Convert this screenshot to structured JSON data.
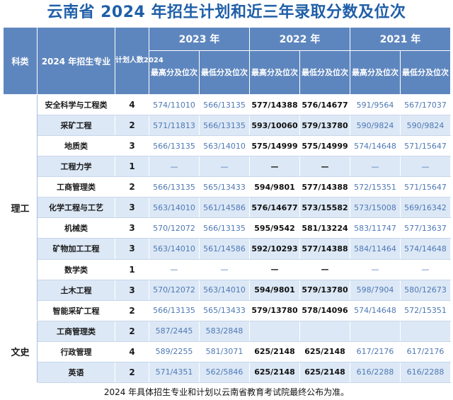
{
  "title": "云南省 2024 年招生计划和近三年录取分数及位次",
  "footnote": "2024 年具体招生专业和计划以云南省教育考试院最终公布为准。",
  "header": {
    "category": "科类",
    "major": "2024 年招生专业",
    "plan": "计划人数2024",
    "years": [
      "2023 年",
      "2022 年",
      "2021 年"
    ],
    "highest": "最高分及位次",
    "lowest": "最低分及位次"
  },
  "colors": {
    "header_bg": "#5e86be",
    "stripe": "#dce8f6",
    "title": "#1f5fa8",
    "value_blue": "#4f79b5"
  },
  "groups": [
    {
      "category": "理工",
      "rows": [
        {
          "major": "安全科学与工程类",
          "plan": "4",
          "y2023_high": "574/11010",
          "y2023_low": "566/13135",
          "y2022_high": "577/14388",
          "y2022_low": "576/14677",
          "y2021_high": "591/9564",
          "y2021_low": "567/17037"
        },
        {
          "major": "采矿工程",
          "plan": "2",
          "y2023_high": "571/11813",
          "y2023_low": "566/13135",
          "y2022_high": "593/10060",
          "y2022_low": "579/13780",
          "y2021_high": "590/9824",
          "y2021_low": "590/9824"
        },
        {
          "major": "地质类",
          "plan": "3",
          "y2023_high": "566/13135",
          "y2023_low": "563/14010",
          "y2022_high": "575/14999",
          "y2022_low": "575/14999",
          "y2021_high": "574/14648",
          "y2021_low": "571/15647"
        },
        {
          "major": "工程力学",
          "plan": "1",
          "y2023_high": "—",
          "y2023_low": "—",
          "y2022_high": "—",
          "y2022_low": "—",
          "y2021_high": "—",
          "y2021_low": "—"
        },
        {
          "major": "工商管理类",
          "plan": "2",
          "y2023_high": "566/13135",
          "y2023_low": "565/13433",
          "y2022_high": "594/9801",
          "y2022_low": "577/14388",
          "y2021_high": "572/15351",
          "y2021_low": "571/15647"
        },
        {
          "major": "化学工程与工艺",
          "plan": "3",
          "y2023_high": "563/14010",
          "y2023_low": "561/14586",
          "y2022_high": "576/14677",
          "y2022_low": "573/15582",
          "y2021_high": "573/15008",
          "y2021_low": "569/16342"
        },
        {
          "major": "机械类",
          "plan": "3",
          "y2023_high": "570/12072",
          "y2023_low": "566/13135",
          "y2022_high": "595/9542",
          "y2022_low": "581/13224",
          "y2021_high": "583/11747",
          "y2021_low": "577/13637"
        },
        {
          "major": "矿物加工工程",
          "plan": "3",
          "y2023_high": "563/14010",
          "y2023_low": "561/14586",
          "y2022_high": "592/10293",
          "y2022_low": "577/14388",
          "y2021_high": "584/11464",
          "y2021_low": "574/14648"
        },
        {
          "major": "数学类",
          "plan": "1",
          "y2023_high": "—",
          "y2023_low": "—",
          "y2022_high": "—",
          "y2022_low": "—",
          "y2021_high": "—",
          "y2021_low": "—"
        },
        {
          "major": "土木工程",
          "plan": "3",
          "y2023_high": "570/12072",
          "y2023_low": "563/14010",
          "y2022_high": "594/9801",
          "y2022_low": "579/13780",
          "y2021_high": "598/7904",
          "y2021_low": "580/12673"
        },
        {
          "major": "智能采矿工程",
          "plan": "2",
          "y2023_high": "566/13135",
          "y2023_low": "565/13433",
          "y2022_high": "579/13780",
          "y2022_low": "578/14096",
          "y2021_high": "574/14648",
          "y2021_low": "572/15351"
        }
      ]
    },
    {
      "category": "文史",
      "rows": [
        {
          "major": "工商管理类",
          "plan": "2",
          "y2023_high": "587/2445",
          "y2023_low": "583/2848",
          "y2022_high": "",
          "y2022_low": "",
          "y2021_high": "",
          "y2021_low": ""
        },
        {
          "major": "行政管理",
          "plan": "4",
          "y2023_high": "589/2255",
          "y2023_low": "581/3071",
          "y2022_high": "625/2148",
          "y2022_low": "625/2148",
          "y2021_high": "617/2176",
          "y2021_low": "617/2176"
        },
        {
          "major": "英语",
          "plan": "2",
          "y2023_high": "571/4351",
          "y2023_low": "562/5846",
          "y2022_high": "625/2148",
          "y2022_low": "625/2148",
          "y2021_high": "616/2288",
          "y2021_low": "616/2288"
        }
      ]
    }
  ]
}
